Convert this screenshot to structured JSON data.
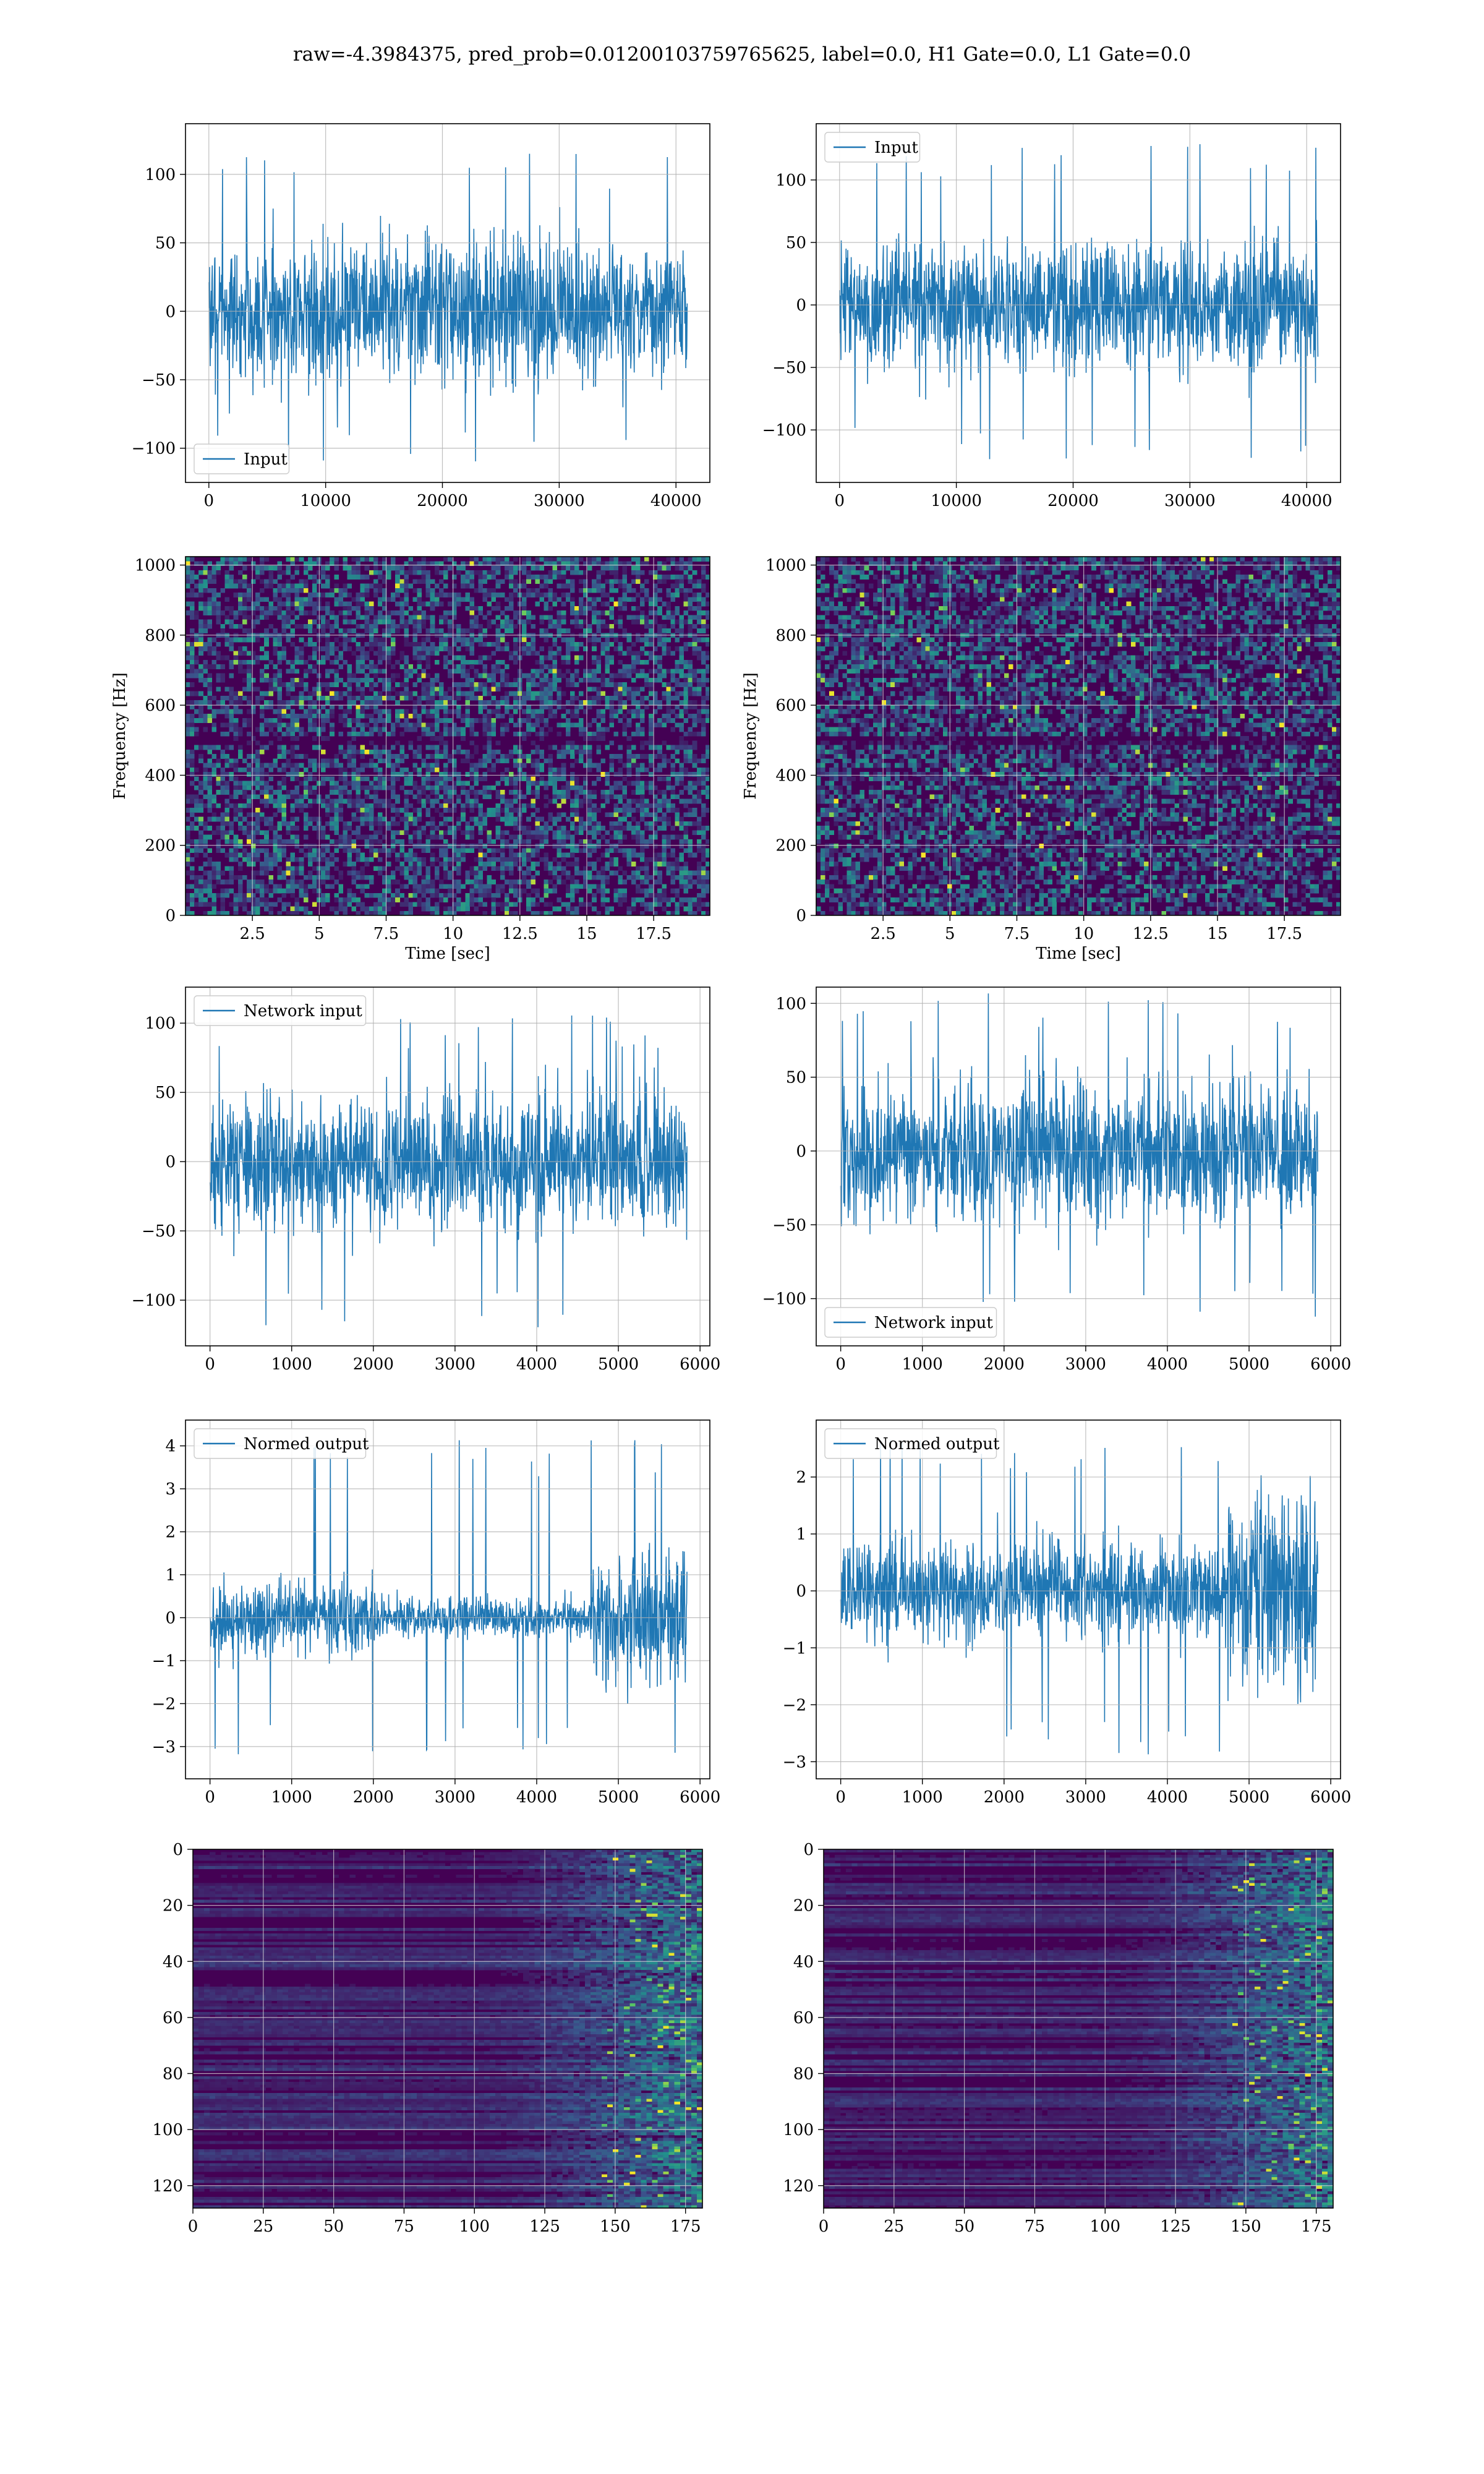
{
  "figure": {
    "title": "raw=-4.3984375, pred_prob=0.01200103759765625, label=0.0, H1 Gate=0.0, L1 Gate=0.0"
  },
  "colors": {
    "line": "#1f77b4",
    "grid": "#b0b0b0",
    "viridis_dark": "#440154"
  },
  "chart_data": [
    {
      "id": "row1-left",
      "type": "line",
      "series": [
        {
          "name": "Input"
        }
      ],
      "legend": "lower left",
      "xlim": [
        -2000,
        42900
      ],
      "ylim": [
        -125,
        137
      ],
      "xticks": [
        0,
        10000,
        20000,
        30000,
        40000
      ],
      "yticks": [
        -100,
        -50,
        0,
        50,
        100
      ],
      "signal": {
        "x_start": 0,
        "x_end": 40960,
        "envelope_typical": 60,
        "envelope_peak": 122,
        "envelope_min": -112,
        "shape": "stationary"
      },
      "grid": true
    },
    {
      "id": "row1-right",
      "type": "line",
      "series": [
        {
          "name": "Input"
        }
      ],
      "legend": "upper left",
      "xlim": [
        -2000,
        42900
      ],
      "ylim": [
        -142,
        145
      ],
      "xticks": [
        0,
        10000,
        20000,
        30000,
        40000
      ],
      "yticks": [
        -100,
        -50,
        0,
        50,
        100
      ],
      "signal": {
        "x_start": 0,
        "x_end": 40960,
        "envelope_typical": 60,
        "envelope_peak": 135,
        "envelope_min": -127,
        "shape": "stationary"
      },
      "grid": true
    },
    {
      "id": "row2-left",
      "type": "heatmap",
      "xlabel": "Time [sec]",
      "ylabel": "Frequency [Hz]",
      "xlim": [
        0,
        19.6
      ],
      "ylim": [
        0,
        1024
      ],
      "xticks": [
        2.5,
        5.0,
        7.5,
        10.0,
        12.5,
        15.0,
        17.5
      ],
      "yticks": [
        0,
        200,
        400,
        600,
        800,
        1000
      ],
      "colormap": "viridis",
      "grid": true
    },
    {
      "id": "row2-right",
      "type": "heatmap",
      "xlabel": "Time [sec]",
      "ylabel": "Frequency [Hz]",
      "xlim": [
        0,
        19.6
      ],
      "ylim": [
        0,
        1024
      ],
      "xticks": [
        2.5,
        5.0,
        7.5,
        10.0,
        12.5,
        15.0,
        17.5
      ],
      "yticks": [
        0,
        200,
        400,
        600,
        800,
        1000
      ],
      "colormap": "viridis",
      "grid": true
    },
    {
      "id": "row3-left",
      "type": "line",
      "series": [
        {
          "name": "Network input"
        }
      ],
      "legend": "upper left",
      "xlim": [
        -300,
        6120
      ],
      "ylim": [
        -133,
        126
      ],
      "xticks": [
        0,
        1000,
        2000,
        3000,
        4000,
        5000,
        6000
      ],
      "yticks": [
        -100,
        -50,
        0,
        50,
        100
      ],
      "signal": {
        "x_start": 0,
        "x_end": 5840,
        "envelope_typical": 55,
        "envelope_peak": 106,
        "envelope_min": -120,
        "shape": "stationary"
      },
      "grid": true
    },
    {
      "id": "row3-right",
      "type": "line",
      "series": [
        {
          "name": "Network input"
        }
      ],
      "legend": "lower left",
      "xlim": [
        -300,
        6120
      ],
      "ylim": [
        -132,
        111
      ],
      "xticks": [
        0,
        1000,
        2000,
        3000,
        4000,
        5000,
        6000
      ],
      "yticks": [
        -100,
        -50,
        0,
        50,
        100
      ],
      "signal": {
        "x_start": 0,
        "x_end": 5840,
        "envelope_typical": 55,
        "envelope_peak": 108,
        "envelope_min": -117,
        "shape": "stationary"
      },
      "grid": true
    },
    {
      "id": "row4-left",
      "type": "line",
      "series": [
        {
          "name": "Normed output"
        }
      ],
      "legend": "upper left",
      "xlim": [
        -300,
        6120
      ],
      "ylim": [
        -3.75,
        4.6
      ],
      "xticks": [
        0,
        1000,
        2000,
        3000,
        4000,
        5000,
        6000
      ],
      "yticks": [
        -3,
        -2,
        -1,
        0,
        1,
        2,
        3,
        4
      ],
      "signal": {
        "x_start": 0,
        "x_end": 5840,
        "envelope_typical": 1.0,
        "envelope_peak": 4.2,
        "envelope_min": -3.3,
        "shape": "quiet middle, burst after 4700"
      },
      "grid": true
    },
    {
      "id": "row4-right",
      "type": "line",
      "series": [
        {
          "name": "Normed output"
        }
      ],
      "legend": "upper left",
      "xlim": [
        -300,
        6120
      ],
      "ylim": [
        -3.3,
        3.0
      ],
      "xticks": [
        0,
        1000,
        2000,
        3000,
        4000,
        5000,
        6000
      ],
      "yticks": [
        -3,
        -2,
        -1,
        0,
        1,
        2
      ],
      "signal": {
        "x_start": 0,
        "x_end": 5840,
        "envelope_typical": 1.0,
        "envelope_peak": 2.7,
        "envelope_min": -2.9,
        "shape": "stationary, burst after 4700"
      },
      "grid": true
    },
    {
      "id": "row5-left",
      "type": "heatmap",
      "xlim": [
        0,
        181
      ],
      "ylim": [
        128,
        0
      ],
      "xticks": [
        0,
        25,
        50,
        75,
        100,
        125,
        150,
        175
      ],
      "yticks": [
        0,
        20,
        40,
        60,
        80,
        100,
        120
      ],
      "colormap": "viridis",
      "grid": true
    },
    {
      "id": "row5-right",
      "type": "heatmap",
      "xlim": [
        0,
        181
      ],
      "ylim": [
        128,
        0
      ],
      "xticks": [
        0,
        25,
        50,
        75,
        100,
        125,
        150,
        175
      ],
      "yticks": [
        0,
        20,
        40,
        60,
        80,
        100,
        120
      ],
      "colormap": "viridis",
      "grid": true
    }
  ]
}
